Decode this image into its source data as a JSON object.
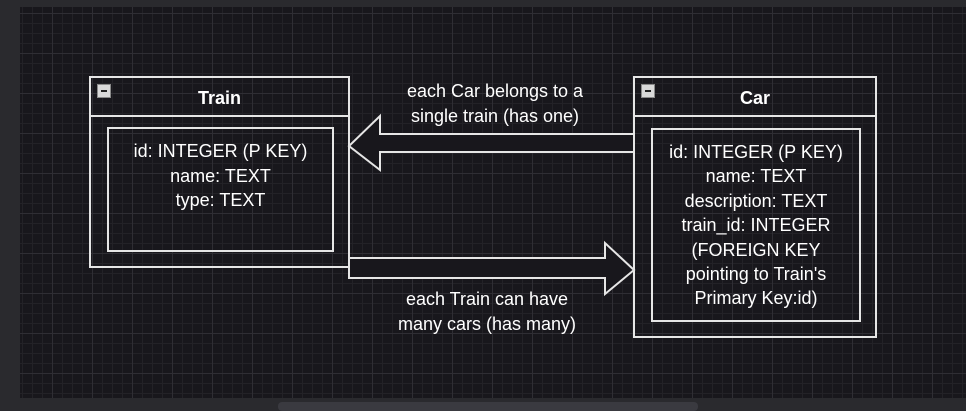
{
  "train": {
    "title": "Train",
    "fields": [
      "id: INTEGER (P KEY)",
      "name: TEXT",
      "type: TEXT"
    ]
  },
  "car": {
    "title": "Car",
    "fields": [
      "id: INTEGER (P KEY)",
      "name: TEXT",
      "description: TEXT",
      "train_id: INTEGER",
      "(FOREIGN KEY",
      "pointing to Train's",
      "Primary Key:id)"
    ]
  },
  "relations": {
    "car_to_train": [
      "each Car belongs to a",
      "single train (has one)"
    ],
    "train_to_car": [
      "each Train can have",
      "many cars (has many)"
    ]
  },
  "icons": {
    "collapse": "minus-square-icon"
  }
}
